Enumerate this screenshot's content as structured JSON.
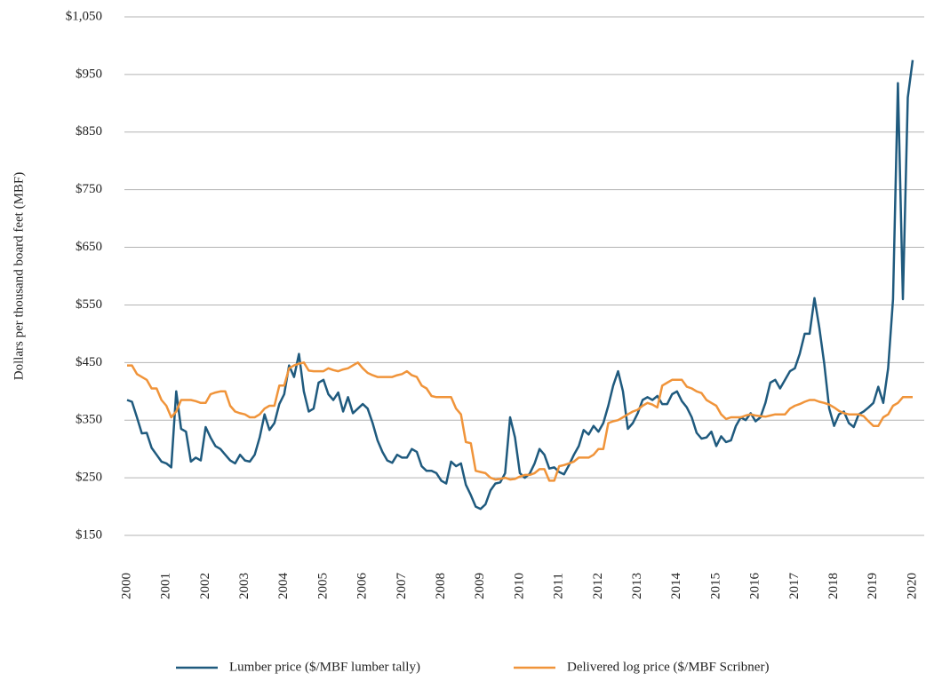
{
  "chart_data": {
    "type": "line",
    "y_label": "Dollars per thousand board feet (MBF)",
    "x": [
      2000,
      2000.125,
      2000.25,
      2000.375,
      2000.5,
      2000.625,
      2000.75,
      2000.875,
      2001,
      2001.125,
      2001.25,
      2001.375,
      2001.5,
      2001.625,
      2001.75,
      2001.875,
      2002,
      2002.125,
      2002.25,
      2002.375,
      2002.5,
      2002.625,
      2002.75,
      2002.875,
      2003,
      2003.125,
      2003.25,
      2003.375,
      2003.5,
      2003.625,
      2003.75,
      2003.875,
      2004,
      2004.125,
      2004.25,
      2004.375,
      2004.5,
      2004.625,
      2004.75,
      2004.875,
      2005,
      2005.125,
      2005.25,
      2005.375,
      2005.5,
      2005.625,
      2005.75,
      2005.875,
      2006,
      2006.125,
      2006.25,
      2006.375,
      2006.5,
      2006.625,
      2006.75,
      2006.875,
      2007,
      2007.125,
      2007.25,
      2007.375,
      2007.5,
      2007.625,
      2007.75,
      2007.875,
      2008,
      2008.125,
      2008.25,
      2008.375,
      2008.5,
      2008.625,
      2008.75,
      2008.875,
      2009,
      2009.125,
      2009.25,
      2009.375,
      2009.5,
      2009.625,
      2009.75,
      2009.875,
      2010,
      2010.125,
      2010.25,
      2010.375,
      2010.5,
      2010.625,
      2010.75,
      2010.875,
      2011,
      2011.125,
      2011.25,
      2011.375,
      2011.5,
      2011.625,
      2011.75,
      2011.875,
      2012,
      2012.125,
      2012.25,
      2012.375,
      2012.5,
      2012.625,
      2012.75,
      2012.875,
      2013,
      2013.125,
      2013.25,
      2013.375,
      2013.5,
      2013.625,
      2013.75,
      2013.875,
      2014,
      2014.125,
      2014.25,
      2014.375,
      2014.5,
      2014.625,
      2014.75,
      2014.875,
      2015,
      2015.125,
      2015.25,
      2015.375,
      2015.5,
      2015.625,
      2015.75,
      2015.875,
      2016,
      2016.125,
      2016.25,
      2016.375,
      2016.5,
      2016.625,
      2016.75,
      2016.875,
      2017,
      2017.125,
      2017.25,
      2017.375,
      2017.5,
      2017.625,
      2017.75,
      2017.875,
      2018,
      2018.125,
      2018.25,
      2018.375,
      2018.5,
      2018.625,
      2018.75,
      2018.875,
      2019,
      2019.125,
      2019.25,
      2019.375,
      2019.5,
      2019.625,
      2019.75,
      2019.875,
      2020
    ],
    "series": [
      {
        "name": "Lumber price ($/MBF lumber tally)",
        "color": "#1f5a7e",
        "values": [
          385,
          382,
          355,
          327,
          328,
          302,
          290,
          278,
          275,
          268,
          400,
          335,
          330,
          278,
          285,
          280,
          338,
          320,
          305,
          300,
          290,
          280,
          275,
          290,
          280,
          278,
          290,
          320,
          360,
          333,
          345,
          378,
          395,
          445,
          425,
          465,
          400,
          365,
          370,
          415,
          420,
          395,
          385,
          398,
          365,
          390,
          362,
          370,
          378,
          370,
          345,
          315,
          295,
          280,
          276,
          290,
          285,
          285,
          300,
          295,
          270,
          262,
          262,
          258,
          245,
          240,
          278,
          270,
          275,
          238,
          220,
          200,
          196,
          204,
          228,
          240,
          242,
          258,
          355,
          320,
          258,
          250,
          257,
          275,
          300,
          290,
          266,
          268,
          260,
          256,
          272,
          290,
          305,
          333,
          325,
          340,
          330,
          345,
          375,
          410,
          435,
          400,
          335,
          345,
          362,
          385,
          390,
          385,
          392,
          378,
          378,
          395,
          400,
          383,
          372,
          355,
          328,
          318,
          320,
          330,
          305,
          322,
          312,
          315,
          340,
          355,
          350,
          362,
          348,
          355,
          380,
          415,
          420,
          405,
          420,
          435,
          440,
          465,
          500,
          500,
          562,
          510,
          448,
          370,
          340,
          360,
          365,
          345,
          338,
          360,
          365,
          372,
          380,
          408,
          380,
          440,
          560,
          935,
          560,
          910,
          975
        ]
      },
      {
        "name": "Delivered log price ($/MBF Scribner)",
        "color": "#f0943a",
        "values": [
          445,
          445,
          430,
          425,
          420,
          405,
          405,
          385,
          375,
          355,
          365,
          385,
          385,
          385,
          383,
          380,
          380,
          395,
          398,
          400,
          400,
          375,
          365,
          362,
          360,
          355,
          355,
          360,
          370,
          375,
          375,
          410,
          410,
          440,
          445,
          448,
          450,
          436,
          435,
          435,
          435,
          440,
          437,
          435,
          438,
          440,
          445,
          450,
          440,
          432,
          428,
          425,
          425,
          425,
          425,
          428,
          430,
          435,
          428,
          425,
          410,
          405,
          392,
          390,
          390,
          390,
          390,
          370,
          360,
          312,
          310,
          262,
          260,
          258,
          250,
          247,
          248,
          250,
          247,
          248,
          252,
          255,
          255,
          258,
          265,
          265,
          245,
          245,
          270,
          272,
          275,
          278,
          285,
          285,
          285,
          290,
          300,
          300,
          345,
          348,
          350,
          355,
          360,
          365,
          368,
          375,
          380,
          377,
          372,
          410,
          415,
          420,
          420,
          420,
          408,
          405,
          400,
          397,
          385,
          380,
          375,
          360,
          352,
          355,
          355,
          355,
          358,
          360,
          358,
          357,
          356,
          358,
          360,
          360,
          360,
          370,
          375,
          378,
          382,
          385,
          385,
          382,
          380,
          377,
          372,
          366,
          362,
          360,
          360,
          360,
          357,
          348,
          340,
          340,
          355,
          360,
          375,
          380,
          390,
          390,
          390
        ]
      }
    ],
    "xlim": [
      2000,
      2020
    ],
    "xticks": [
      2000,
      2001,
      2002,
      2003,
      2004,
      2005,
      2006,
      2007,
      2008,
      2009,
      2010,
      2011,
      2012,
      2013,
      2014,
      2015,
      2016,
      2017,
      2018,
      2019,
      2020
    ],
    "ylim": [
      150,
      1050
    ],
    "yticks": [
      {
        "value": 150,
        "label": "$150"
      },
      {
        "value": 250,
        "label": "$250"
      },
      {
        "value": 350,
        "label": "$350"
      },
      {
        "value": 450,
        "label": "$450"
      },
      {
        "value": 550,
        "label": "$550"
      },
      {
        "value": 650,
        "label": "$650"
      },
      {
        "value": 750,
        "label": "$750"
      },
      {
        "value": 850,
        "label": "$850"
      },
      {
        "value": 950,
        "label": "$950"
      },
      {
        "value": 1050,
        "label": "$1,050"
      }
    ],
    "grid": true,
    "legend": "bottom"
  }
}
